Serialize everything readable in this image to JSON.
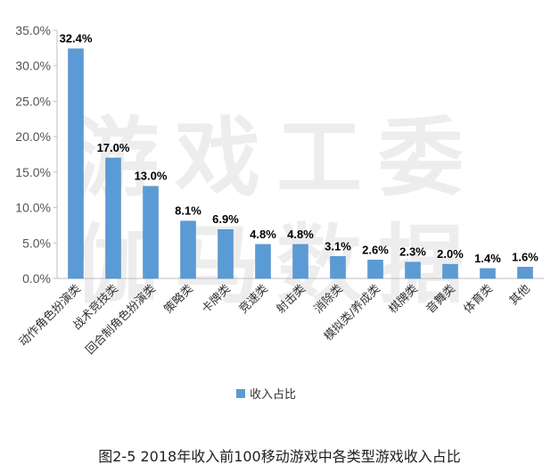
{
  "caption": "图2-5 2018年收入前100移动游戏中各类型游戏收入占比",
  "watermark": {
    "line1": "游戏工委",
    "line2": "伽马数据"
  },
  "colors": {
    "bar": "#5b9bd5",
    "bar_edge": "#4a88c2",
    "axis": "#bfbfbf",
    "grid": "#e0e0e0"
  },
  "chart_data": {
    "type": "bar",
    "title": "",
    "xlabel": "",
    "ylabel": "",
    "categories": [
      "动作角色扮演类",
      "战术竞技类",
      "回合制角色扮演类",
      "策略类",
      "卡牌类",
      "竞速类",
      "射击类",
      "消除类",
      "模拟类/养成类",
      "棋牌类",
      "音舞类",
      "体育类",
      "其他"
    ],
    "series": [
      {
        "name": "收入占比",
        "values": [
          32.4,
          17.0,
          13.0,
          8.1,
          6.9,
          4.8,
          4.8,
          3.1,
          2.6,
          2.3,
          2.0,
          1.4,
          1.6
        ]
      }
    ],
    "data_labels": [
      "32.4%",
      "17.0%",
      "13.0%",
      "8.1%",
      "6.9%",
      "4.8%",
      "4.8%",
      "3.1%",
      "2.6%",
      "2.3%",
      "2.0%",
      "1.4%",
      "1.6%"
    ],
    "ylim": [
      0,
      35
    ],
    "yticks": [
      0,
      5,
      10,
      15,
      20,
      25,
      30,
      35
    ],
    "ytick_labels": [
      "0.0%",
      "5.0%",
      "10.0%",
      "15.0%",
      "20.0%",
      "25.0%",
      "30.0%",
      "35.0%"
    ],
    "grid": false,
    "legend_position": "bottom-left"
  }
}
